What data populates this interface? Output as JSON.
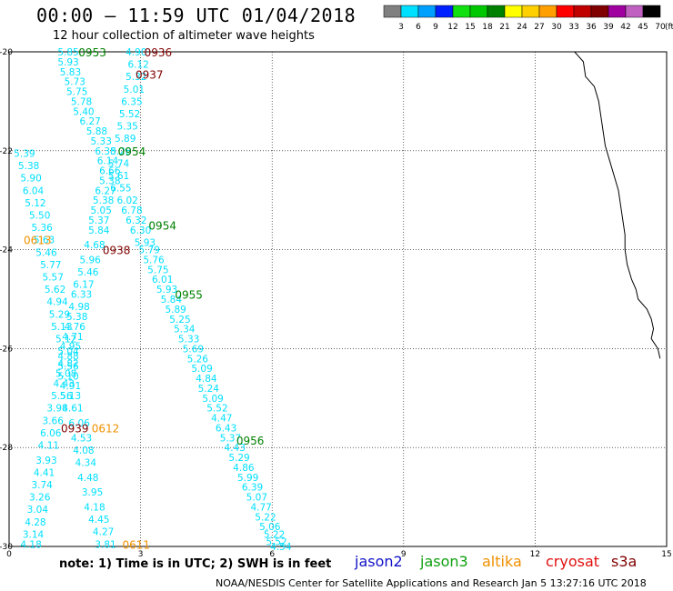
{
  "header": {
    "title": "00:00 — 11:59 UTC 01/04/2018",
    "subtitle": "12 hour collection of altimeter wave heights"
  },
  "footer": {
    "note": "note: 1) Time is in UTC; 2) SWH is in feet",
    "credit": "NOAA/NESDIS Center for Satellite Applications and Research   Jan  5 13:27:16 UTC 2018"
  },
  "satellites": [
    {
      "name": "jason2",
      "color": "#1010c8"
    },
    {
      "name": "jason3",
      "color": "#10a010"
    },
    {
      "name": "altika",
      "color": "#f09000"
    },
    {
      "name": "cryosat",
      "color": "#e01010"
    },
    {
      "name": "s3a",
      "color": "#800000"
    }
  ],
  "legend": {
    "unit": "(ft)",
    "colors": [
      "#808080",
      "#00e0ff",
      "#00a0ff",
      "#0020ff",
      "#10e010",
      "#00c800",
      "#008000",
      "#ffff00",
      "#ffd000",
      "#ffa000",
      "#ff0000",
      "#c00000",
      "#800000",
      "#a000a0",
      "#c060c0",
      "#000000"
    ],
    "labels": [
      "3",
      "6",
      "9",
      "12",
      "15",
      "18",
      "21",
      "24",
      "27",
      "30",
      "33",
      "36",
      "39",
      "42",
      "45",
      "70"
    ]
  },
  "chart_data": {
    "type": "scatter",
    "title": "12 hour collection of altimeter wave heights",
    "xlabel": "",
    "ylabel": "",
    "xlim": [
      0,
      15
    ],
    "ylim": [
      -30,
      -20
    ],
    "x_ticks": [
      "0",
      "3",
      "6",
      "9",
      "12",
      "15"
    ],
    "y_ticks": [
      "-20",
      "-22",
      "-24",
      "-26",
      "-28",
      "-30"
    ],
    "grid": true,
    "coastline": [
      [
        12.9,
        -20.0
      ],
      [
        13.1,
        -20.2
      ],
      [
        13.15,
        -20.5
      ],
      [
        13.35,
        -20.7
      ],
      [
        13.45,
        -21.0
      ],
      [
        13.5,
        -21.3
      ],
      [
        13.55,
        -21.6
      ],
      [
        13.6,
        -21.9
      ],
      [
        13.7,
        -22.2
      ],
      [
        13.8,
        -22.5
      ],
      [
        13.9,
        -22.8
      ],
      [
        13.95,
        -23.1
      ],
      [
        14.0,
        -23.4
      ],
      [
        14.05,
        -23.7
      ],
      [
        14.05,
        -24.0
      ],
      [
        14.1,
        -24.3
      ],
      [
        14.2,
        -24.6
      ],
      [
        14.3,
        -24.8
      ],
      [
        14.35,
        -25.0
      ],
      [
        14.55,
        -25.2
      ],
      [
        14.65,
        -25.4
      ],
      [
        14.7,
        -25.6
      ],
      [
        14.65,
        -25.8
      ],
      [
        14.8,
        -26.0
      ],
      [
        14.85,
        -26.2
      ]
    ],
    "pass_labels": [
      {
        "text": "0953",
        "x": 1.9,
        "y": -20.0,
        "color": "#008000"
      },
      {
        "text": "0936",
        "x": 3.4,
        "y": -20.0,
        "color": "#800000"
      },
      {
        "text": "0937",
        "x": 3.2,
        "y": -20.45,
        "color": "#800000"
      },
      {
        "text": "0954",
        "x": 2.8,
        "y": -22.0,
        "color": "#008000"
      },
      {
        "text": "0954",
        "x": 3.5,
        "y": -23.5,
        "color": "#008000"
      },
      {
        "text": "0613",
        "x": 0.65,
        "y": -23.8,
        "color": "#f09000"
      },
      {
        "text": "0938",
        "x": 2.45,
        "y": -24.0,
        "color": "#800000"
      },
      {
        "text": "0955",
        "x": 4.1,
        "y": -24.9,
        "color": "#008000"
      },
      {
        "text": "0939",
        "x": 1.5,
        "y": -27.6,
        "color": "#800000"
      },
      {
        "text": "0612",
        "x": 2.2,
        "y": -27.6,
        "color": "#f09000"
      },
      {
        "text": "0956",
        "x": 5.5,
        "y": -27.85,
        "color": "#008000"
      },
      {
        "text": "0611",
        "x": 2.9,
        "y": -29.95,
        "color": "#f09000"
      }
    ],
    "series": [
      {
        "color": "#00e0ff",
        "points": [
          [
            1.35,
            -20.0,
            "5.85"
          ],
          [
            1.35,
            -20.2,
            "5.93"
          ],
          [
            1.4,
            -20.4,
            "5.83"
          ],
          [
            1.5,
            -20.6,
            "5.73"
          ],
          [
            1.55,
            -20.8,
            "5.75"
          ],
          [
            1.65,
            -21.0,
            "5.78"
          ],
          [
            1.7,
            -21.2,
            "5.40"
          ],
          [
            1.85,
            -21.4,
            "6.27"
          ],
          [
            2.0,
            -21.6,
            "5.88"
          ],
          [
            2.1,
            -21.8,
            "5.33"
          ],
          [
            2.2,
            -22.0,
            "6.38"
          ],
          [
            2.25,
            -22.2,
            "6.14"
          ],
          [
            2.3,
            -22.4,
            "6.66"
          ],
          [
            2.3,
            -22.6,
            "5.38"
          ],
          [
            2.2,
            -22.8,
            "6.27"
          ],
          [
            2.15,
            -23.0,
            "5.38"
          ],
          [
            2.1,
            -23.2,
            "5.05"
          ],
          [
            2.05,
            -23.4,
            "5.37"
          ],
          [
            2.05,
            -23.6,
            "5.84"
          ],
          [
            1.95,
            -23.9,
            "4.68"
          ],
          [
            1.85,
            -24.2,
            "5.96"
          ],
          [
            1.8,
            -24.45,
            "5.46"
          ],
          [
            1.7,
            -24.7,
            "6.17"
          ],
          [
            1.65,
            -24.9,
            "6.33"
          ],
          [
            1.6,
            -25.15,
            "4.98"
          ],
          [
            1.55,
            -25.35,
            "5.38"
          ],
          [
            1.5,
            -25.55,
            "4.76"
          ],
          [
            1.45,
            -25.75,
            "4.71"
          ],
          [
            1.4,
            -25.95,
            "4.95"
          ],
          [
            1.35,
            -26.15,
            "4.88"
          ],
          [
            1.35,
            -26.35,
            "5.56"
          ],
          [
            1.35,
            -26.55,
            "5.10"
          ],
          [
            1.4,
            -26.75,
            "4.91"
          ],
          [
            1.4,
            -26.95,
            "5.13"
          ],
          [
            1.45,
            -27.2,
            "4.61"
          ],
          [
            1.6,
            -27.5,
            "6.06"
          ],
          [
            1.65,
            -27.8,
            "4.53"
          ],
          [
            1.7,
            -28.05,
            "4.08"
          ],
          [
            1.75,
            -28.3,
            "4.34"
          ],
          [
            1.8,
            -28.6,
            "4.48"
          ],
          [
            1.9,
            -28.9,
            "3.95"
          ],
          [
            1.95,
            -29.2,
            "4.18"
          ],
          [
            2.05,
            -29.45,
            "4.45"
          ],
          [
            2.15,
            -29.7,
            "4.27"
          ],
          [
            2.2,
            -29.95,
            "3.81"
          ]
        ]
      },
      {
        "color": "#00e0ff",
        "points": [
          [
            0.35,
            -22.05,
            "5.39"
          ],
          [
            0.45,
            -22.3,
            "5.38"
          ],
          [
            0.5,
            -22.55,
            "5.90"
          ],
          [
            0.55,
            -22.8,
            "6.04"
          ],
          [
            0.6,
            -23.05,
            "5.12"
          ],
          [
            0.7,
            -23.3,
            "5.50"
          ],
          [
            0.75,
            -23.55,
            "5.36"
          ],
          [
            0.8,
            -23.8,
            "5.63"
          ],
          [
            0.85,
            -24.05,
            "5.46"
          ],
          [
            0.95,
            -24.3,
            "5.77"
          ],
          [
            1.0,
            -24.55,
            "5.57"
          ],
          [
            1.05,
            -24.8,
            "5.62"
          ],
          [
            1.1,
            -25.05,
            "4.94"
          ],
          [
            1.15,
            -25.3,
            "5.29"
          ],
          [
            1.2,
            -25.55,
            "5.13"
          ],
          [
            1.3,
            -25.8,
            "5.12"
          ],
          [
            1.35,
            -26.05,
            "5.04"
          ],
          [
            1.35,
            -26.3,
            "4.82"
          ],
          [
            1.3,
            -26.5,
            "5.08"
          ],
          [
            1.25,
            -26.7,
            "4.43"
          ],
          [
            1.2,
            -26.95,
            "5.56"
          ],
          [
            1.1,
            -27.2,
            "3.98"
          ],
          [
            1.0,
            -27.45,
            "3.66"
          ],
          [
            0.95,
            -27.7,
            "6.06"
          ],
          [
            0.9,
            -27.95,
            "4.11"
          ],
          [
            0.85,
            -28.25,
            "3.93"
          ],
          [
            0.8,
            -28.5,
            "4.41"
          ],
          [
            0.75,
            -28.75,
            "3.74"
          ],
          [
            0.7,
            -29.0,
            "3.26"
          ],
          [
            0.65,
            -29.25,
            "3.04"
          ],
          [
            0.6,
            -29.5,
            "4.28"
          ],
          [
            0.55,
            -29.75,
            "3.14"
          ],
          [
            0.5,
            -29.95,
            "4.18"
          ]
        ]
      },
      {
        "color": "#00e0ff",
        "points": [
          [
            2.9,
            -20.0,
            "4.90"
          ],
          [
            2.95,
            -20.25,
            "6.12"
          ],
          [
            2.9,
            -20.5,
            "5.32"
          ],
          [
            2.85,
            -20.75,
            "5.01"
          ],
          [
            2.8,
            -21.0,
            "6.35"
          ],
          [
            2.75,
            -21.25,
            "5.52"
          ],
          [
            2.7,
            -21.5,
            "5.35"
          ],
          [
            2.65,
            -21.75,
            "5.89"
          ],
          [
            2.55,
            -22.0,
            "5.28"
          ],
          [
            2.5,
            -22.25,
            "5.74"
          ],
          [
            2.5,
            -22.5,
            "5.61"
          ],
          [
            2.55,
            -22.75,
            "6.55"
          ],
          [
            2.7,
            -23.0,
            "6.02"
          ],
          [
            2.8,
            -23.2,
            "6.78"
          ],
          [
            2.9,
            -23.4,
            "6.32"
          ],
          [
            3.0,
            -23.6,
            "6.30"
          ],
          [
            3.1,
            -23.85,
            "5.93"
          ],
          [
            3.2,
            -24.0,
            "5.79"
          ],
          [
            3.3,
            -24.2,
            "5.76"
          ],
          [
            3.4,
            -24.4,
            "5.75"
          ],
          [
            3.5,
            -24.6,
            "6.01"
          ],
          [
            3.6,
            -24.8,
            "5.93"
          ],
          [
            3.7,
            -25.0,
            "5.84"
          ],
          [
            3.8,
            -25.2,
            "5.89"
          ],
          [
            3.9,
            -25.4,
            "5.25"
          ],
          [
            4.0,
            -25.6,
            "5.34"
          ],
          [
            4.1,
            -25.8,
            "5.33"
          ],
          [
            4.2,
            -26.0,
            "5.69"
          ],
          [
            4.3,
            -26.2,
            "5.26"
          ],
          [
            4.4,
            -26.4,
            "5.09"
          ],
          [
            4.5,
            -26.6,
            "4.84"
          ],
          [
            4.55,
            -26.8,
            "5.24"
          ],
          [
            4.65,
            -27.0,
            "5.09"
          ],
          [
            4.75,
            -27.2,
            "5.52"
          ],
          [
            4.85,
            -27.4,
            "4.47"
          ],
          [
            4.95,
            -27.6,
            "6.43"
          ],
          [
            5.05,
            -27.8,
            "5.37"
          ],
          [
            5.15,
            -28.0,
            "4.43"
          ],
          [
            5.25,
            -28.2,
            "5.29"
          ],
          [
            5.35,
            -28.4,
            "4.86"
          ],
          [
            5.45,
            -28.6,
            "5.99"
          ],
          [
            5.55,
            -28.8,
            "6.39"
          ],
          [
            5.65,
            -29.0,
            "5.07"
          ],
          [
            5.75,
            -29.2,
            "4.77"
          ],
          [
            5.85,
            -29.4,
            "5.22"
          ],
          [
            5.95,
            -29.6,
            "5.06"
          ],
          [
            6.05,
            -29.75,
            "5.22"
          ],
          [
            6.1,
            -29.9,
            "5.52"
          ],
          [
            6.2,
            -30.0,
            "4.54"
          ]
        ]
      }
    ]
  }
}
